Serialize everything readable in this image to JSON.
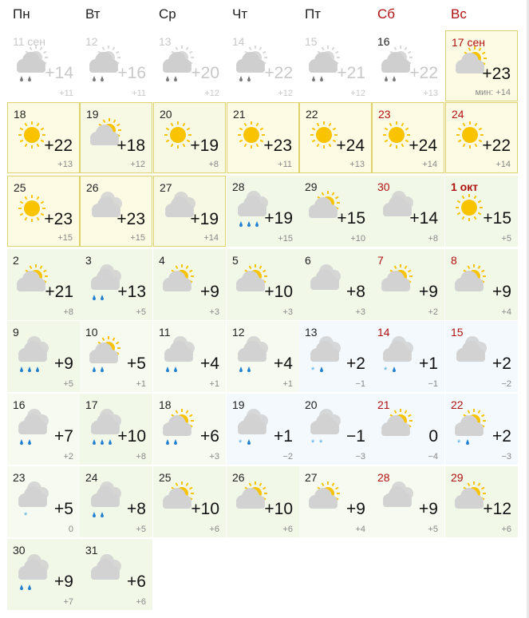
{
  "weekdays": [
    {
      "label": "Пн",
      "weekend": false
    },
    {
      "label": "Вт",
      "weekend": false
    },
    {
      "label": "Ср",
      "weekend": false
    },
    {
      "label": "Чт",
      "weekend": false
    },
    {
      "label": "Пт",
      "weekend": false
    },
    {
      "label": "Сб",
      "weekend": true
    },
    {
      "label": "Вс",
      "weekend": true
    }
  ],
  "colors": {
    "weekend": "#b01010",
    "sun": "#f9c300",
    "cloud": "#d2d2d2",
    "rain": "#1f7fd0",
    "snow": "#4aa8e0",
    "today_border": "#ddd36a"
  },
  "days": [
    {
      "date": "11 сен",
      "icon": "partly",
      "precip": [
        "rain",
        "rain"
      ],
      "temp": "+14",
      "min": "+11",
      "bg": "p"
    },
    {
      "date": "12",
      "icon": "partly",
      "precip": [
        "rain",
        "rain"
      ],
      "temp": "+16",
      "min": "+11",
      "bg": "p"
    },
    {
      "date": "13",
      "icon": "partly",
      "precip": [
        "rain",
        "rain"
      ],
      "temp": "+20",
      "min": "+12",
      "bg": "p"
    },
    {
      "date": "14",
      "icon": "partly",
      "precip": [
        "rain",
        "rain"
      ],
      "temp": "+22",
      "min": "+12",
      "bg": "p"
    },
    {
      "date": "15",
      "icon": "partly",
      "precip": [
        "rain",
        "rain"
      ],
      "temp": "+21",
      "min": "+12",
      "bg": "p"
    },
    {
      "date": "16",
      "icon": "partly",
      "precip": [
        "rain",
        "rain"
      ],
      "temp": "+22",
      "min": "+13",
      "bg": "p",
      "current_month": true
    },
    {
      "date": "17 сен",
      "icon": "partly",
      "precip": [],
      "temp": "+23",
      "min": "мин: +14",
      "bg": "t",
      "today": true
    },
    {
      "date": "18",
      "icon": "sun",
      "precip": [],
      "temp": "+22",
      "min": "+13",
      "bg": "y"
    },
    {
      "date": "19",
      "icon": "partly",
      "precip": [],
      "temp": "+18",
      "min": "+12",
      "bg": "yg"
    },
    {
      "date": "20",
      "icon": "sun",
      "precip": [],
      "temp": "+19",
      "min": "+8",
      "bg": "yg"
    },
    {
      "date": "21",
      "icon": "sun",
      "precip": [],
      "temp": "+23",
      "min": "+11",
      "bg": "y"
    },
    {
      "date": "22",
      "icon": "sun",
      "precip": [],
      "temp": "+24",
      "min": "+13",
      "bg": "y"
    },
    {
      "date": "23",
      "icon": "sun",
      "precip": [],
      "temp": "+24",
      "min": "+14",
      "bg": "y"
    },
    {
      "date": "24",
      "icon": "sun",
      "precip": [],
      "temp": "+22",
      "min": "+14",
      "bg": "y"
    },
    {
      "date": "25",
      "icon": "sun",
      "precip": [],
      "temp": "+23",
      "min": "+15",
      "bg": "y"
    },
    {
      "date": "26",
      "icon": "cloud",
      "precip": [],
      "temp": "+23",
      "min": "+15",
      "bg": "y"
    },
    {
      "date": "27",
      "icon": "cloud",
      "precip": [],
      "temp": "+19",
      "min": "+14",
      "bg": "yg"
    },
    {
      "date": "28",
      "icon": "cloud",
      "precip": [
        "rain",
        "rain",
        "rain"
      ],
      "temp": "+19",
      "min": "+15",
      "bg": "g"
    },
    {
      "date": "29",
      "icon": "partly",
      "precip": [],
      "temp": "+15",
      "min": "+10",
      "bg": "g"
    },
    {
      "date": "30",
      "icon": "cloud",
      "precip": [],
      "temp": "+14",
      "min": "+8",
      "bg": "g"
    },
    {
      "date": "1 окт",
      "icon": "sun",
      "precip": [],
      "temp": "+15",
      "min": "+5",
      "bg": "g",
      "bold": true
    },
    {
      "date": "2",
      "icon": "partly",
      "precip": [],
      "temp": "+21",
      "min": "+8",
      "bg": "g"
    },
    {
      "date": "3",
      "icon": "cloud",
      "precip": [
        "rain",
        "rain"
      ],
      "temp": "+13",
      "min": "+5",
      "bg": "g"
    },
    {
      "date": "4",
      "icon": "partly",
      "precip": [],
      "temp": "+9",
      "min": "+3",
      "bg": "g"
    },
    {
      "date": "5",
      "icon": "partly",
      "precip": [],
      "temp": "+10",
      "min": "+3",
      "bg": "g"
    },
    {
      "date": "6",
      "icon": "cloud",
      "precip": [],
      "temp": "+8",
      "min": "+3",
      "bg": "g"
    },
    {
      "date": "7",
      "icon": "partly",
      "precip": [],
      "temp": "+9",
      "min": "+2",
      "bg": "g"
    },
    {
      "date": "8",
      "icon": "partly",
      "precip": [],
      "temp": "+9",
      "min": "+4",
      "bg": "g"
    },
    {
      "date": "9",
      "icon": "cloud",
      "precip": [
        "rain",
        "rain",
        "rain"
      ],
      "temp": "+9",
      "min": "+5",
      "bg": "g"
    },
    {
      "date": "10",
      "icon": "partly",
      "precip": [
        "rain",
        "rain"
      ],
      "temp": "+5",
      "min": "+1",
      "bg": "lg"
    },
    {
      "date": "11",
      "icon": "cloud",
      "precip": [
        "rain",
        "rain"
      ],
      "temp": "+4",
      "min": "+1",
      "bg": "lg"
    },
    {
      "date": "12",
      "icon": "cloud",
      "precip": [
        "rain",
        "rain"
      ],
      "temp": "+4",
      "min": "+1",
      "bg": "lg"
    },
    {
      "date": "13",
      "icon": "cloud",
      "precip": [
        "snow",
        "rain"
      ],
      "temp": "+2",
      "min": "−1",
      "bg": "b"
    },
    {
      "date": "14",
      "icon": "cloud",
      "precip": [
        "snow",
        "rain"
      ],
      "temp": "+1",
      "min": "−1",
      "bg": "b"
    },
    {
      "date": "15",
      "icon": "cloud",
      "precip": [],
      "temp": "+2",
      "min": "−2",
      "bg": "b"
    },
    {
      "date": "16",
      "icon": "cloud",
      "precip": [
        "rain",
        "rain"
      ],
      "temp": "+7",
      "min": "+2",
      "bg": "lg"
    },
    {
      "date": "17",
      "icon": "cloud",
      "precip": [
        "rain",
        "rain",
        "rain"
      ],
      "temp": "+10",
      "min": "+8",
      "bg": "g"
    },
    {
      "date": "18",
      "icon": "partly",
      "precip": [
        "rain",
        "rain"
      ],
      "temp": "+6",
      "min": "+3",
      "bg": "lg"
    },
    {
      "date": "19",
      "icon": "cloud",
      "precip": [
        "snow",
        "rain"
      ],
      "temp": "+1",
      "min": "−2",
      "bg": "b"
    },
    {
      "date": "20",
      "icon": "cloud",
      "precip": [
        "snow",
        "snow"
      ],
      "temp": "−1",
      "min": "−3",
      "bg": "b"
    },
    {
      "date": "21",
      "icon": "partly",
      "precip": [],
      "temp": "0",
      "min": "−4",
      "bg": "b"
    },
    {
      "date": "22",
      "icon": "partly",
      "precip": [
        "snow",
        "rain"
      ],
      "temp": "+2",
      "min": "−3",
      "bg": "b"
    },
    {
      "date": "23",
      "icon": "cloud",
      "precip": [
        "snow"
      ],
      "temp": "+5",
      "min": "0",
      "bg": "lg"
    },
    {
      "date": "24",
      "icon": "cloud",
      "precip": [
        "rain",
        "rain"
      ],
      "temp": "+8",
      "min": "+5",
      "bg": "g"
    },
    {
      "date": "25",
      "icon": "partly",
      "precip": [],
      "temp": "+10",
      "min": "+6",
      "bg": "g"
    },
    {
      "date": "26",
      "icon": "partly",
      "precip": [],
      "temp": "+10",
      "min": "+6",
      "bg": "g"
    },
    {
      "date": "27",
      "icon": "partly",
      "precip": [],
      "temp": "+9",
      "min": "+4",
      "bg": "lg"
    },
    {
      "date": "28",
      "icon": "cloud",
      "precip": [],
      "temp": "+9",
      "min": "+5",
      "bg": "lg"
    },
    {
      "date": "29",
      "icon": "partly",
      "precip": [],
      "temp": "+12",
      "min": "+6",
      "bg": "g"
    },
    {
      "date": "30",
      "icon": "cloud",
      "precip": [
        "rain",
        "rain"
      ],
      "temp": "+9",
      "min": "+7",
      "bg": "g"
    },
    {
      "date": "31",
      "icon": "cloud",
      "precip": [],
      "temp": "+6",
      "min": "+6",
      "bg": "g"
    }
  ]
}
